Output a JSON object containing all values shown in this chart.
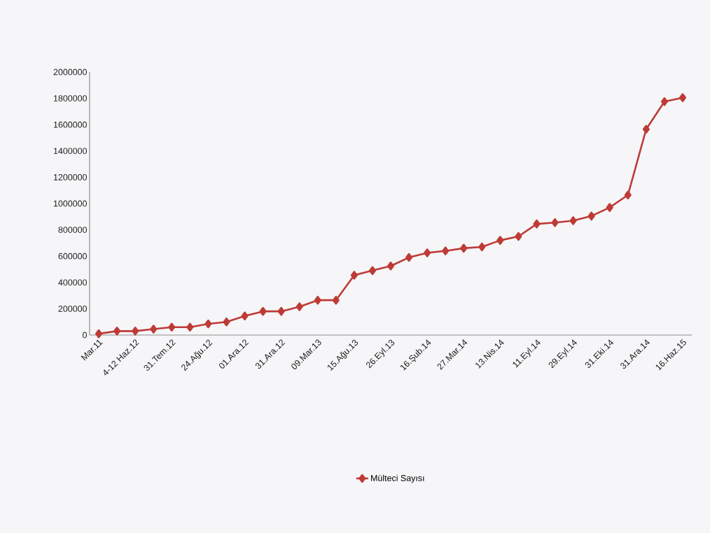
{
  "chart_data": {
    "type": "line",
    "categories": [
      "Mar.11",
      null,
      "4-12 Haz.12",
      null,
      "31.Tem.12",
      null,
      "24.Ağu.12",
      null,
      "01.Ara.12",
      null,
      "31.Ara.12",
      null,
      "09.Mar.13",
      null,
      "15.Ağu.13",
      null,
      "26.Eyl.13",
      null,
      "16.Şub.14",
      null,
      "27.Mar.14",
      null,
      "13.Nis.14",
      null,
      "11.Eyl.14",
      null,
      "29.Eyl.14",
      null,
      "31.Eki.14",
      null,
      "31.Ara.14",
      null,
      "16.Haz.15"
    ],
    "series": [
      {
        "name": "Mülteci Sayısı",
        "color": "#be3b36",
        "values": [
          10000,
          30000,
          30000,
          45000,
          60000,
          60000,
          85000,
          100000,
          145000,
          180000,
          180000,
          215000,
          265000,
          265000,
          455000,
          490000,
          525000,
          590000,
          625000,
          640000,
          660000,
          670000,
          720000,
          750000,
          845000,
          855000,
          870000,
          905000,
          970000,
          1065000,
          1565000,
          1775000,
          1805000
        ]
      }
    ],
    "ylim": [
      0,
      2000000
    ],
    "yticks": [
      0,
      200000,
      400000,
      600000,
      800000,
      1000000,
      1200000,
      1400000,
      1600000,
      1800000,
      2000000
    ],
    "marker": "diamond",
    "line_style": "solid",
    "legend": "bottom",
    "grid": false
  }
}
